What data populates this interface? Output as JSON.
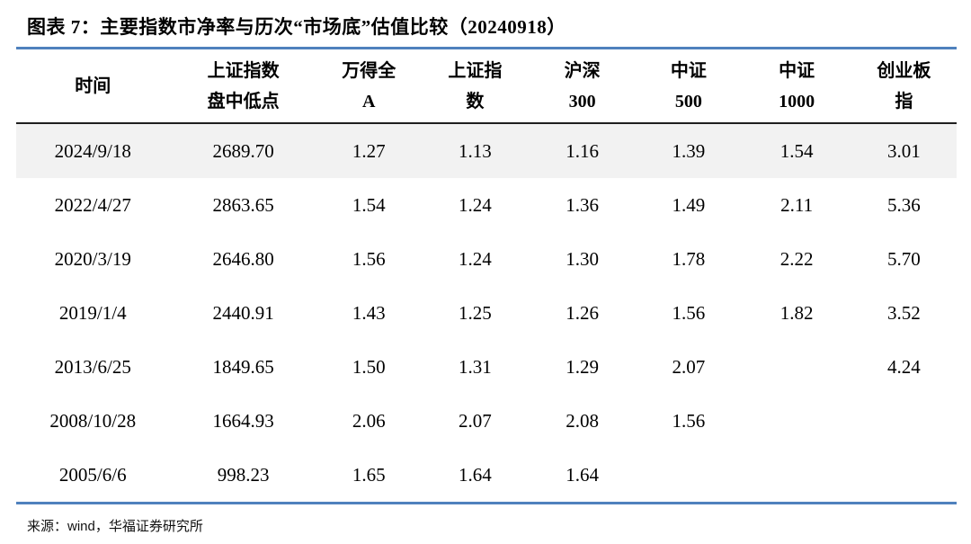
{
  "title": "图表 7：主要指数市净率与历次“市场底”估值比较（20240918）",
  "table": {
    "columns": [
      {
        "id": "time",
        "lines": [
          "时间"
        ]
      },
      {
        "id": "sse-intraday-low",
        "lines": [
          "上证指数",
          "盘中低点"
        ]
      },
      {
        "id": "wind-all-a",
        "lines": [
          "万得全",
          "A"
        ]
      },
      {
        "id": "sse-index",
        "lines": [
          "上证指",
          "数"
        ]
      },
      {
        "id": "csi-300",
        "lines": [
          "沪深",
          "300"
        ]
      },
      {
        "id": "csi-500",
        "lines": [
          "中证",
          "500"
        ]
      },
      {
        "id": "csi-1000",
        "lines": [
          "中证",
          "1000"
        ]
      },
      {
        "id": "chinext",
        "lines": [
          "创业板",
          "指"
        ]
      }
    ],
    "rows": [
      {
        "highlight": true,
        "cells": [
          "2024/9/18",
          "2689.70",
          "1.27",
          "1.13",
          "1.16",
          "1.39",
          "1.54",
          "3.01"
        ]
      },
      {
        "highlight": false,
        "cells": [
          "2022/4/27",
          "2863.65",
          "1.54",
          "1.24",
          "1.36",
          "1.49",
          "2.11",
          "5.36"
        ]
      },
      {
        "highlight": false,
        "cells": [
          "2020/3/19",
          "2646.80",
          "1.56",
          "1.24",
          "1.30",
          "1.78",
          "2.22",
          "5.70"
        ]
      },
      {
        "highlight": false,
        "cells": [
          "2019/1/4",
          "2440.91",
          "1.43",
          "1.25",
          "1.26",
          "1.56",
          "1.82",
          "3.52"
        ]
      },
      {
        "highlight": false,
        "cells": [
          "2013/6/25",
          "1849.65",
          "1.50",
          "1.31",
          "1.29",
          "2.07",
          "",
          "4.24"
        ]
      },
      {
        "highlight": false,
        "cells": [
          "2008/10/28",
          "1664.93",
          "2.06",
          "2.07",
          "2.08",
          "1.56",
          "",
          ""
        ]
      },
      {
        "highlight": false,
        "cells": [
          "2005/6/6",
          "998.23",
          "1.65",
          "1.64",
          "1.64",
          "",
          "",
          ""
        ]
      }
    ]
  },
  "footer": {
    "label": "来源：",
    "source": "wind",
    "rest": "，华福证券研究所"
  },
  "colors": {
    "accent_blue": "#4f81bd",
    "header_rule": "#1f1f1f",
    "highlight_row": "#f2f2f2"
  },
  "chart_data": {
    "type": "table",
    "title": "图表 7：主要指数市净率与历次“市场底”估值比较（20240918）",
    "headers": [
      "时间",
      "上证指数盘中低点",
      "万得全A",
      "上证指数",
      "沪深300",
      "中证500",
      "中证1000",
      "创业板指"
    ],
    "rows": [
      [
        "2024/9/18",
        2689.7,
        1.27,
        1.13,
        1.16,
        1.39,
        1.54,
        3.01
      ],
      [
        "2022/4/27",
        2863.65,
        1.54,
        1.24,
        1.36,
        1.49,
        2.11,
        5.36
      ],
      [
        "2020/3/19",
        2646.8,
        1.56,
        1.24,
        1.3,
        1.78,
        2.22,
        5.7
      ],
      [
        "2019/1/4",
        2440.91,
        1.43,
        1.25,
        1.26,
        1.56,
        1.82,
        3.52
      ],
      [
        "2013/6/25",
        1849.65,
        1.5,
        1.31,
        1.29,
        2.07,
        null,
        4.24
      ],
      [
        "2008/10/28",
        1664.93,
        2.06,
        2.07,
        2.08,
        1.56,
        null,
        null
      ],
      [
        "2005/6/6",
        998.23,
        1.65,
        1.64,
        1.64,
        null,
        null,
        null
      ]
    ],
    "source": "来源：wind，华福证券研究所"
  }
}
